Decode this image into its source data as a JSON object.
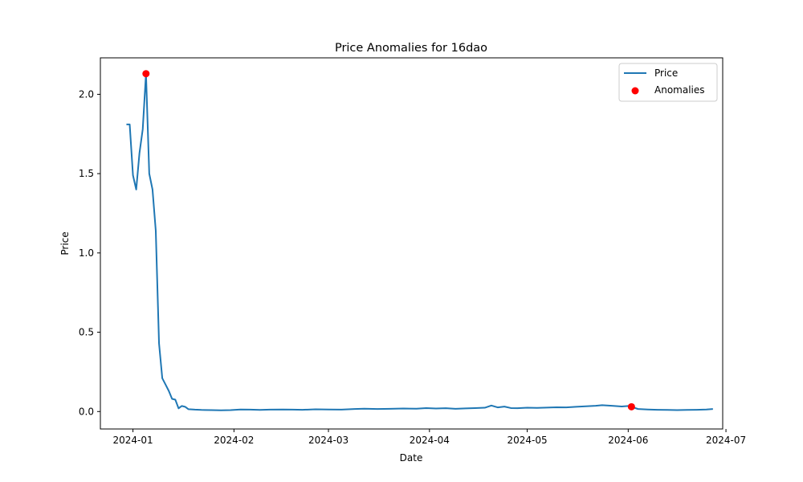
{
  "chart_data": {
    "type": "line",
    "title": "Price Anomalies for 16dao",
    "xlabel": "Date",
    "ylabel": "Price",
    "xlim": [
      "2023-12-22",
      "2024-06-30"
    ],
    "ylim": [
      -0.11,
      2.23
    ],
    "x_ticks": [
      "2024-01",
      "2024-02",
      "2024-03",
      "2024-04",
      "2024-05",
      "2024-06",
      "2024-07"
    ],
    "y_ticks": [
      0.0,
      0.5,
      1.0,
      1.5,
      2.0
    ],
    "y_tick_labels": [
      "0.0",
      "0.5",
      "1.0",
      "1.5",
      "2.0"
    ],
    "legend": {
      "position": "upper-right",
      "entries": [
        "Price",
        "Anomalies"
      ]
    },
    "grid": false,
    "colors": {
      "price": "#1f77b4",
      "anomalies": "#ff0000"
    },
    "series": [
      {
        "name": "Price",
        "style": "line",
        "x": [
          "2023-12-30",
          "2023-12-31",
          "2024-01-01",
          "2024-01-02",
          "2024-01-03",
          "2024-01-04",
          "2024-01-05",
          "2024-01-06",
          "2024-01-07",
          "2024-01-08",
          "2024-01-09",
          "2024-01-10",
          "2024-01-11",
          "2024-01-12",
          "2024-01-13",
          "2024-01-14",
          "2024-01-15",
          "2024-01-16",
          "2024-01-17",
          "2024-01-18",
          "2024-01-20",
          "2024-01-22",
          "2024-01-25",
          "2024-01-28",
          "2024-01-31",
          "2024-02-03",
          "2024-02-06",
          "2024-02-09",
          "2024-02-12",
          "2024-02-16",
          "2024-02-19",
          "2024-02-22",
          "2024-02-26",
          "2024-03-01",
          "2024-03-05",
          "2024-03-09",
          "2024-03-12",
          "2024-03-16",
          "2024-03-20",
          "2024-03-24",
          "2024-03-28",
          "2024-03-31",
          "2024-04-03",
          "2024-04-06",
          "2024-04-09",
          "2024-04-12",
          "2024-04-15",
          "2024-04-18",
          "2024-04-20",
          "2024-04-22",
          "2024-04-24",
          "2024-04-26",
          "2024-04-28",
          "2024-05-01",
          "2024-05-04",
          "2024-05-07",
          "2024-05-10",
          "2024-05-13",
          "2024-05-16",
          "2024-05-19",
          "2024-05-22",
          "2024-05-24",
          "2024-05-27",
          "2024-05-30",
          "2024-06-01",
          "2024-06-02",
          "2024-06-04",
          "2024-06-07",
          "2024-06-10",
          "2024-06-13",
          "2024-06-16",
          "2024-06-19",
          "2024-06-22",
          "2024-06-25",
          "2024-06-27"
        ],
        "y": [
          1.81,
          1.81,
          1.49,
          1.4,
          1.63,
          1.78,
          2.13,
          1.5,
          1.4,
          1.14,
          0.43,
          0.21,
          0.17,
          0.13,
          0.08,
          0.075,
          0.02,
          0.035,
          0.03,
          0.015,
          0.012,
          0.01,
          0.009,
          0.008,
          0.009,
          0.013,
          0.012,
          0.01,
          0.012,
          0.013,
          0.012,
          0.011,
          0.014,
          0.013,
          0.012,
          0.016,
          0.018,
          0.016,
          0.017,
          0.019,
          0.018,
          0.022,
          0.019,
          0.021,
          0.017,
          0.02,
          0.022,
          0.024,
          0.038,
          0.026,
          0.031,
          0.022,
          0.021,
          0.024,
          0.023,
          0.025,
          0.027,
          0.026,
          0.03,
          0.033,
          0.036,
          0.04,
          0.036,
          0.032,
          0.035,
          0.03,
          0.016,
          0.013,
          0.011,
          0.01,
          0.009,
          0.01,
          0.011,
          0.013,
          0.016
        ]
      },
      {
        "name": "Anomalies",
        "style": "scatter",
        "x": [
          "2024-01-05",
          "2024-06-02"
        ],
        "y": [
          2.13,
          0.03
        ]
      }
    ]
  }
}
